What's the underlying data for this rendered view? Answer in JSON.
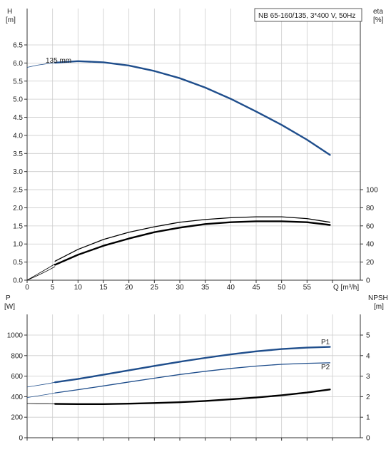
{
  "title": "NB 65-160/135, 3*400 V, 50Hz",
  "colors": {
    "blue": "#1f4e8c",
    "black": "#000000",
    "grid": "#cccccc",
    "axis": "#333333"
  },
  "chart_data": [
    {
      "type": "line",
      "panel": "upper",
      "xlabel": "Q [m³/h]",
      "xlim": [
        0,
        60
      ],
      "xticks": [
        0,
        5,
        10,
        15,
        20,
        25,
        30,
        35,
        40,
        45,
        50,
        55
      ],
      "left_axis": {
        "label_line1": "H",
        "label_line2": "[m]",
        "ylim": [
          0,
          7.0
        ],
        "ticks": [
          "0.0",
          "0.5",
          "1.0",
          "1.5",
          "2.0",
          "2.5",
          "3.0",
          "3.5",
          "4.0",
          "4.5",
          "5.0",
          "5.5",
          "6.0",
          "6.5"
        ]
      },
      "right_axis": {
        "label_line1": "eta",
        "label_line2": "[%]",
        "ylim": [
          0,
          140
        ],
        "ticks": [
          "0",
          "20",
          "40",
          "60",
          "80",
          "100"
        ]
      },
      "series": [
        {
          "name": "135 mm",
          "axis": "left",
          "color": "#1f4e8c",
          "x": [
            5.5,
            10,
            15,
            20,
            25,
            30,
            35,
            40,
            45,
            50,
            55,
            59.5
          ],
          "y": [
            6.01,
            6.05,
            6.02,
            5.93,
            5.78,
            5.58,
            5.32,
            5.01,
            4.66,
            4.29,
            3.88,
            3.46
          ],
          "extension_x": [
            0,
            2,
            4,
            5.5
          ],
          "extension_y": [
            5.88,
            5.94,
            5.98,
            6.01
          ]
        },
        {
          "name": "",
          "axis": "right",
          "color": "#000000",
          "x": [
            5.5,
            10,
            15,
            20,
            25,
            30,
            35,
            40,
            45,
            50,
            55,
            59.5
          ],
          "y": [
            21,
            34,
            45,
            53,
            59,
            64,
            67,
            69,
            70,
            70,
            68,
            64
          ],
          "extension_x": [
            0,
            2,
            4,
            5.5
          ],
          "extension_y": [
            0,
            6.5,
            13,
            18
          ]
        },
        {
          "name": "",
          "axis": "right",
          "color": "#000000",
          "x": [
            5.5,
            10,
            15,
            20,
            25,
            30,
            35,
            40,
            45,
            50,
            55,
            59.5
          ],
          "y": [
            17,
            28,
            38,
            46,
            53,
            58,
            62,
            64,
            65,
            65,
            64,
            61
          ],
          "extension_x": [
            0,
            2,
            4,
            5.5
          ],
          "extension_y": [
            0,
            5,
            10.5,
            15
          ]
        }
      ],
      "annotations": [
        {
          "text": "135 mm",
          "x": 3.5,
          "y": 6.0
        }
      ]
    },
    {
      "type": "line",
      "panel": "lower",
      "xlim": [
        0,
        60
      ],
      "left_axis": {
        "label_line1": "P",
        "label_line2": "[W]",
        "ylim": [
          0,
          1200
        ],
        "ticks": [
          "0",
          "200",
          "400",
          "600",
          "800",
          "1000"
        ]
      },
      "right_axis": {
        "label_line1": "NPSH",
        "label_line2": "[m]",
        "ylim": [
          0,
          6
        ],
        "ticks": [
          "0",
          "1",
          "2",
          "3",
          "4",
          "5"
        ]
      },
      "series": [
        {
          "name": "P1",
          "axis": "left",
          "color": "#1f4e8c",
          "x": [
            5.5,
            10,
            15,
            20,
            25,
            30,
            35,
            40,
            45,
            50,
            55,
            59.5
          ],
          "y": [
            540,
            572,
            614,
            657,
            699,
            740,
            778,
            812,
            842,
            864,
            878,
            885
          ],
          "extension_x": [
            0,
            2,
            4,
            5.5
          ],
          "extension_y": [
            494,
            510,
            526,
            540
          ]
        },
        {
          "name": "P2",
          "axis": "left",
          "color": "#1f4e8c",
          "x": [
            5.5,
            10,
            15,
            20,
            25,
            30,
            35,
            40,
            45,
            50,
            55,
            59.5
          ],
          "y": [
            437,
            468,
            505,
            543,
            580,
            616,
            647,
            675,
            698,
            715,
            725,
            730
          ],
          "extension_x": [
            0,
            2,
            4,
            5.5
          ],
          "extension_y": [
            392,
            407,
            423,
            437
          ]
        },
        {
          "name": "",
          "axis": "right",
          "color": "#000000",
          "x": [
            5.5,
            10,
            15,
            20,
            25,
            30,
            35,
            40,
            45,
            50,
            55,
            59.5
          ],
          "y": [
            1.65,
            1.64,
            1.64,
            1.66,
            1.69,
            1.73,
            1.79,
            1.87,
            1.96,
            2.07,
            2.2,
            2.35
          ],
          "extension_x": [
            0,
            2,
            4,
            5.5
          ],
          "extension_y": [
            1.67,
            1.66,
            1.66,
            1.65
          ]
        }
      ],
      "annotations": [
        {
          "text": "P1"
        },
        {
          "text": "P2"
        }
      ]
    }
  ]
}
